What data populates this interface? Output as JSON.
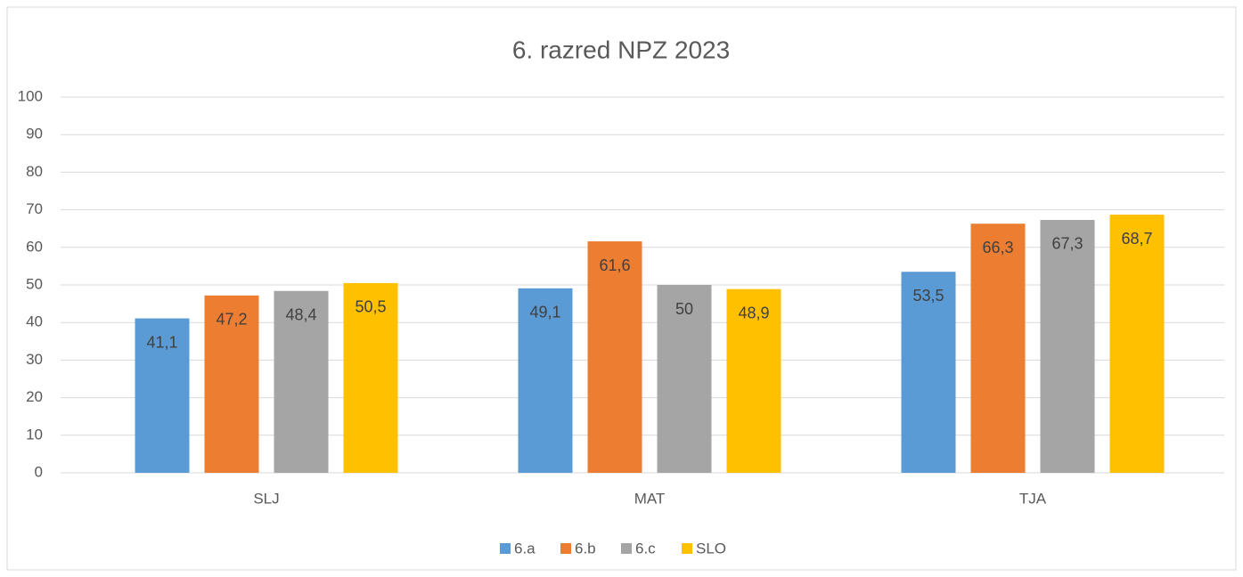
{
  "chart_data": {
    "type": "bar",
    "title": "6. razred NPZ 2023",
    "categories": [
      "SLJ",
      "MAT",
      "TJA"
    ],
    "series": [
      {
        "name": "6.a",
        "color": "#5b9bd5",
        "values": [
          41.1,
          49.1,
          53.5
        ],
        "value_labels": [
          "41,1",
          "49,1",
          "53,5"
        ]
      },
      {
        "name": "6.b",
        "color": "#ed7d31",
        "values": [
          47.2,
          61.6,
          66.3
        ],
        "value_labels": [
          "47,2",
          "61,6",
          "66,3"
        ]
      },
      {
        "name": "6.c",
        "color": "#a5a5a5",
        "values": [
          48.4,
          50,
          67.3
        ],
        "value_labels": [
          "48,4",
          "50",
          "67,3"
        ]
      },
      {
        "name": "SLO",
        "color": "#ffc000",
        "values": [
          50.5,
          48.9,
          68.7
        ],
        "value_labels": [
          "50,5",
          "48,9",
          "68,7"
        ]
      }
    ],
    "ylim": [
      0,
      100
    ],
    "yticks": [
      0,
      10,
      20,
      30,
      40,
      50,
      60,
      70,
      80,
      90,
      100
    ],
    "grid": true,
    "legend": "bottom"
  }
}
